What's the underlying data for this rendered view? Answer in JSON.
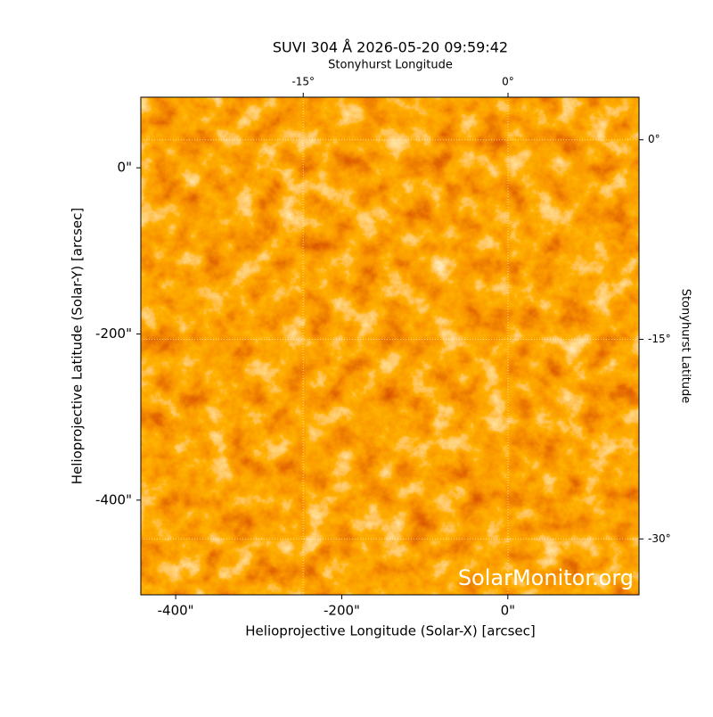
{
  "chart_data": {
    "type": "image",
    "title": "SUVI 304 Å 2026-05-20 09:59:42",
    "xlabel": "Helioprojective Longitude (Solar-X) [arcsec]",
    "ylabel": "Helioprojective Latitude (Solar-Y) [arcsec]",
    "x2label": "Stonyhurst Longitude",
    "y2label": "Stonyhurst Latitude",
    "watermark": "SolarMonitor.org",
    "xlim": [
      -442,
      158
    ],
    "ylim": [
      -514,
      85
    ],
    "xticks": [
      {
        "value": -400,
        "label": "-400\""
      },
      {
        "value": -200,
        "label": "-200\""
      },
      {
        "value": 0,
        "label": "0\""
      }
    ],
    "yticks": [
      {
        "value": -400,
        "label": "-400\""
      },
      {
        "value": -200,
        "label": "-200\""
      },
      {
        "value": 0,
        "label": "0\""
      }
    ],
    "x2lim": [
      -26.9,
      9.6
    ],
    "x2ticks": [
      {
        "value": -15,
        "label": "-15°"
      },
      {
        "value": 0,
        "label": "0°"
      }
    ],
    "y2lim": [
      -34.2,
      3.2
    ],
    "y2ticks": [
      {
        "value": 0,
        "label": "0°"
      },
      {
        "value": -15,
        "label": "-15°"
      },
      {
        "value": -30,
        "label": "-30°"
      }
    ],
    "grid": true
  }
}
